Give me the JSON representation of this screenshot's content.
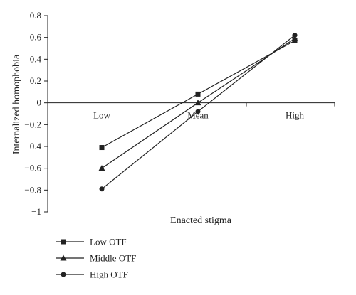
{
  "chart_data": {
    "type": "line",
    "xlabel": "Enacted stigma",
    "ylabel": "Internalized homophobia",
    "categories": [
      "Low",
      "Mean",
      "High"
    ],
    "ylim": [
      -1,
      0.8
    ],
    "yticks": [
      0.8,
      0.6,
      0.4,
      0.2,
      0,
      -0.2,
      -0.4,
      -0.6,
      -0.8,
      -1
    ],
    "ytick_labels": [
      "0.8",
      "0.6",
      "0.4",
      "0.2",
      "0",
      "−0.2",
      "−0.4",
      "−0.6",
      "−0.8",
      "−1"
    ],
    "grid": false,
    "legend_position": "bottom-left",
    "series": [
      {
        "name": "Low OTF",
        "marker": "square",
        "values": [
          -0.41,
          0.08,
          0.57
        ],
        "color": "#222222"
      },
      {
        "name": "Middle OTF",
        "marker": "triangle",
        "values": [
          -0.6,
          0.0,
          0.59
        ],
        "color": "#222222"
      },
      {
        "name": "High OTF",
        "marker": "circle",
        "values": [
          -0.79,
          -0.08,
          0.62
        ],
        "color": "#222222"
      }
    ]
  }
}
